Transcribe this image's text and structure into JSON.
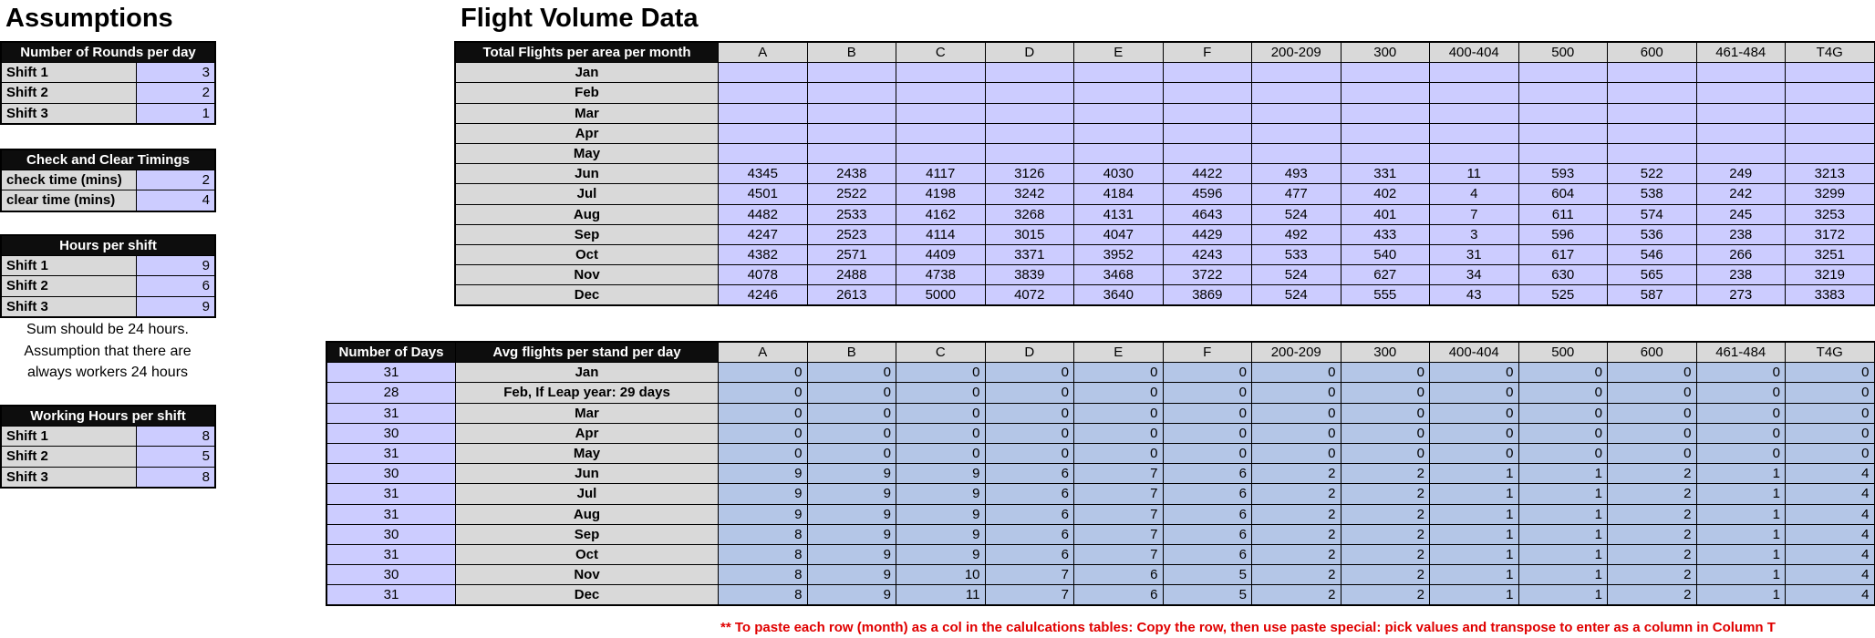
{
  "assumptions": {
    "title": "Assumptions",
    "rounds": {
      "header": "Number of Rounds per day",
      "rows": [
        [
          "Shift 1",
          "3"
        ],
        [
          "Shift 2",
          "2"
        ],
        [
          "Shift 3",
          "1"
        ]
      ]
    },
    "timings": {
      "header": "Check and Clear Timings",
      "rows": [
        [
          "check time (mins)",
          "2"
        ],
        [
          "clear time (mins)",
          "4"
        ]
      ]
    },
    "hours": {
      "header": "Hours per shift",
      "rows": [
        [
          "Shift 1",
          "9"
        ],
        [
          "Shift 2",
          "6"
        ],
        [
          "Shift 3",
          "9"
        ]
      ]
    },
    "note": [
      "Sum should be 24 hours.",
      "Assumption that there are",
      "always workers 24 hours"
    ],
    "working": {
      "header": "Working Hours per shift",
      "rows": [
        [
          "Shift 1",
          "8"
        ],
        [
          "Shift 2",
          "5"
        ],
        [
          "Shift 3",
          "8"
        ]
      ]
    }
  },
  "flight": {
    "title": "Flight Volume Data",
    "columns": [
      "A",
      "B",
      "C",
      "D",
      "E",
      "F",
      "200-209",
      "300",
      "400-404",
      "500",
      "600",
      "461-484",
      "T4G"
    ],
    "total": {
      "header": "Total Flights per area per month",
      "rows": [
        {
          "month": "Jan",
          "values": [
            "",
            "",
            "",
            "",
            "",
            "",
            "",
            "",
            "",
            "",
            "",
            "",
            ""
          ]
        },
        {
          "month": "Feb",
          "values": [
            "",
            "",
            "",
            "",
            "",
            "",
            "",
            "",
            "",
            "",
            "",
            "",
            ""
          ]
        },
        {
          "month": "Mar",
          "values": [
            "",
            "",
            "",
            "",
            "",
            "",
            "",
            "",
            "",
            "",
            "",
            "",
            ""
          ]
        },
        {
          "month": "Apr",
          "values": [
            "",
            "",
            "",
            "",
            "",
            "",
            "",
            "",
            "",
            "",
            "",
            "",
            ""
          ]
        },
        {
          "month": "May",
          "values": [
            "",
            "",
            "",
            "",
            "",
            "",
            "",
            "",
            "",
            "",
            "",
            "",
            ""
          ]
        },
        {
          "month": "Jun",
          "values": [
            "4345",
            "2438",
            "4117",
            "3126",
            "4030",
            "4422",
            "493",
            "331",
            "11",
            "593",
            "522",
            "249",
            "3213"
          ]
        },
        {
          "month": "Jul",
          "values": [
            "4501",
            "2522",
            "4198",
            "3242",
            "4184",
            "4596",
            "477",
            "402",
            "4",
            "604",
            "538",
            "242",
            "3299"
          ]
        },
        {
          "month": "Aug",
          "values": [
            "4482",
            "2533",
            "4162",
            "3268",
            "4131",
            "4643",
            "524",
            "401",
            "7",
            "611",
            "574",
            "245",
            "3253"
          ]
        },
        {
          "month": "Sep",
          "values": [
            "4247",
            "2523",
            "4114",
            "3015",
            "4047",
            "4429",
            "492",
            "433",
            "3",
            "596",
            "536",
            "238",
            "3172"
          ]
        },
        {
          "month": "Oct",
          "values": [
            "4382",
            "2571",
            "4409",
            "3371",
            "3952",
            "4243",
            "533",
            "540",
            "31",
            "617",
            "546",
            "266",
            "3251"
          ]
        },
        {
          "month": "Nov",
          "values": [
            "4078",
            "2488",
            "4738",
            "3839",
            "3468",
            "3722",
            "524",
            "627",
            "34",
            "630",
            "565",
            "238",
            "3219"
          ]
        },
        {
          "month": "Dec",
          "values": [
            "4246",
            "2613",
            "5000",
            "4072",
            "3640",
            "3869",
            "524",
            "555",
            "43",
            "525",
            "587",
            "273",
            "3383"
          ]
        }
      ]
    },
    "avg": {
      "days_header": "Number of Days",
      "header": "Avg flights per stand per day",
      "rows": [
        {
          "days": "31",
          "month": "Jan",
          "values": [
            "0",
            "0",
            "0",
            "0",
            "0",
            "0",
            "0",
            "0",
            "0",
            "0",
            "0",
            "0",
            "0"
          ]
        },
        {
          "days": "28",
          "month": "Feb, If Leap year: 29 days",
          "values": [
            "0",
            "0",
            "0",
            "0",
            "0",
            "0",
            "0",
            "0",
            "0",
            "0",
            "0",
            "0",
            "0"
          ]
        },
        {
          "days": "31",
          "month": "Mar",
          "values": [
            "0",
            "0",
            "0",
            "0",
            "0",
            "0",
            "0",
            "0",
            "0",
            "0",
            "0",
            "0",
            "0"
          ]
        },
        {
          "days": "30",
          "month": "Apr",
          "values": [
            "0",
            "0",
            "0",
            "0",
            "0",
            "0",
            "0",
            "0",
            "0",
            "0",
            "0",
            "0",
            "0"
          ]
        },
        {
          "days": "31",
          "month": "May",
          "values": [
            "0",
            "0",
            "0",
            "0",
            "0",
            "0",
            "0",
            "0",
            "0",
            "0",
            "0",
            "0",
            "0"
          ]
        },
        {
          "days": "30",
          "month": "Jun",
          "values": [
            "9",
            "9",
            "9",
            "6",
            "7",
            "6",
            "2",
            "2",
            "1",
            "1",
            "2",
            "1",
            "4"
          ]
        },
        {
          "days": "31",
          "month": "Jul",
          "values": [
            "9",
            "9",
            "9",
            "6",
            "7",
            "6",
            "2",
            "2",
            "1",
            "1",
            "2",
            "1",
            "4"
          ]
        },
        {
          "days": "31",
          "month": "Aug",
          "values": [
            "9",
            "9",
            "9",
            "6",
            "7",
            "6",
            "2",
            "2",
            "1",
            "1",
            "2",
            "1",
            "4"
          ]
        },
        {
          "days": "30",
          "month": "Sep",
          "values": [
            "8",
            "9",
            "9",
            "6",
            "7",
            "6",
            "2",
            "2",
            "1",
            "1",
            "2",
            "1",
            "4"
          ]
        },
        {
          "days": "31",
          "month": "Oct",
          "values": [
            "8",
            "9",
            "9",
            "6",
            "7",
            "6",
            "2",
            "2",
            "1",
            "1",
            "2",
            "1",
            "4"
          ]
        },
        {
          "days": "30",
          "month": "Nov",
          "values": [
            "8",
            "9",
            "10",
            "7",
            "6",
            "5",
            "2",
            "2",
            "1",
            "1",
            "2",
            "1",
            "4"
          ]
        },
        {
          "days": "31",
          "month": "Dec",
          "values": [
            "8",
            "9",
            "11",
            "7",
            "6",
            "5",
            "2",
            "2",
            "1",
            "1",
            "2",
            "1",
            "4"
          ]
        }
      ]
    },
    "note": "** To paste each row (month) as a col in the calulcations tables: Copy the row, then use paste special: pick values and transpose to enter as a column in Column T"
  }
}
